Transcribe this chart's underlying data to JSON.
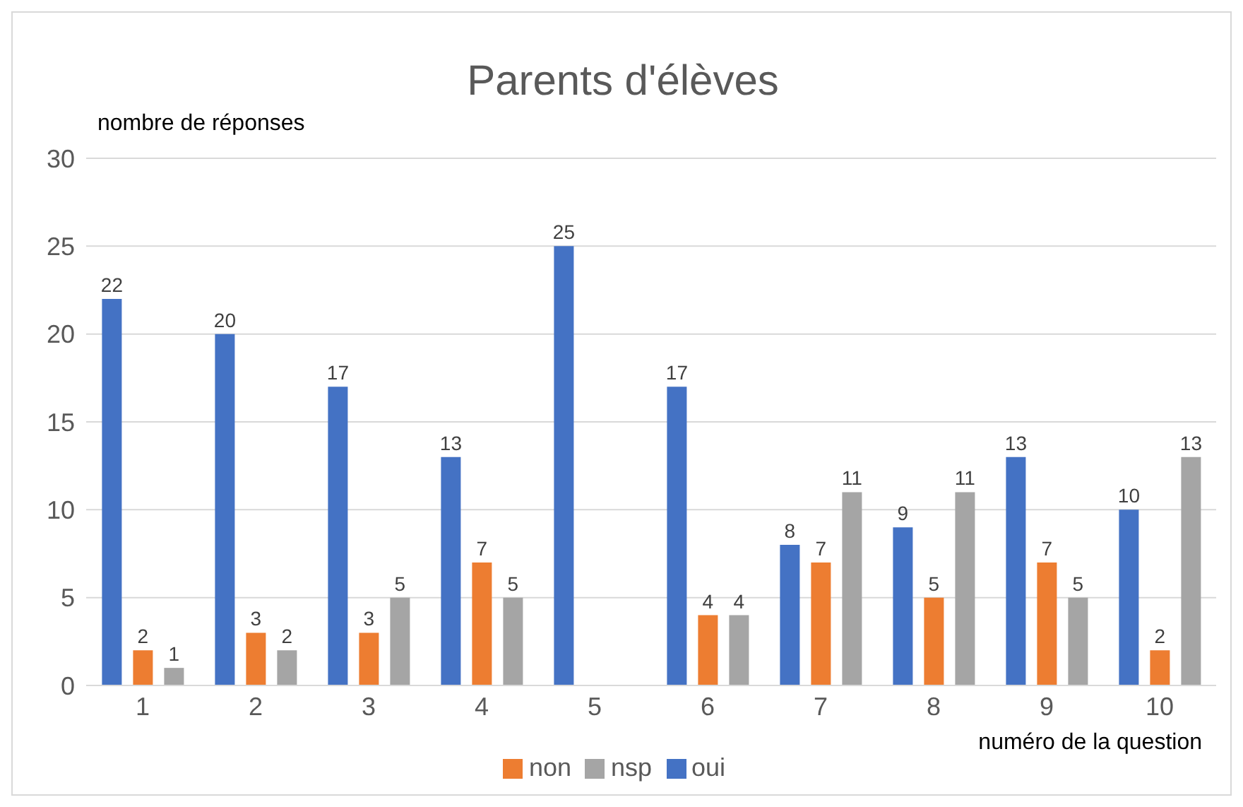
{
  "chart_data": {
    "type": "bar",
    "title": "Parents d'élèves",
    "ylabel": "nombre de réponses",
    "xlabel": "numéro de la question",
    "categories": [
      "1",
      "2",
      "3",
      "4",
      "5",
      "6",
      "7",
      "8",
      "9",
      "10"
    ],
    "series": [
      {
        "name": "oui",
        "color": "#4472c4",
        "values": [
          22,
          20,
          17,
          13,
          25,
          17,
          8,
          9,
          13,
          10
        ],
        "value_labels": [
          "22",
          "20",
          "17",
          "13",
          "25",
          "17",
          "8",
          "9",
          "13",
          "10"
        ]
      },
      {
        "name": "non",
        "color": "#ed7d31",
        "values": [
          2,
          3,
          3,
          7,
          0,
          4,
          7,
          5,
          7,
          2
        ],
        "value_labels": [
          "2",
          "3",
          "3",
          "7",
          null,
          "4",
          "7",
          "5",
          "7",
          "2"
        ]
      },
      {
        "name": "nsp",
        "color": "#a5a5a5",
        "values": [
          1,
          2,
          5,
          5,
          0,
          4,
          11,
          11,
          5,
          13
        ],
        "value_labels": [
          "1",
          "2",
          "5",
          "5",
          null,
          "4",
          "11",
          "11",
          "5",
          "13"
        ]
      }
    ],
    "ylim": [
      0,
      30
    ],
    "yticks": [
      0,
      5,
      10,
      15,
      20,
      25,
      30
    ],
    "grid": "y",
    "legend": "bottom"
  }
}
